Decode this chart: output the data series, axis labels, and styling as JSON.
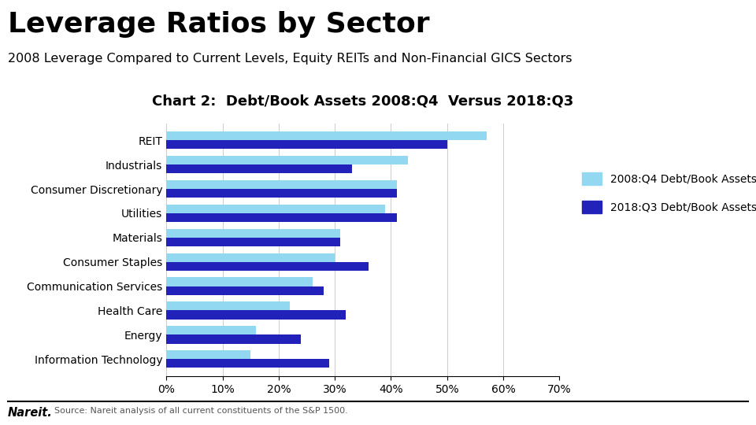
{
  "title_main": "Leverage Ratios by Sector",
  "subtitle": "2008 Leverage Compared to Current Levels, Equity REITs and Non-Financial GICS Sectors",
  "chart_title": "Chart 2:  Debt/Book Assets 2008:Q4  Versus 2018:Q3",
  "categories": [
    "Information Technology",
    "Energy",
    "Health Care",
    "Communication Services",
    "Consumer Staples",
    "Materials",
    "Utilities",
    "Consumer Discretionary",
    "Industrials",
    "REIT"
  ],
  "values_2008q4": [
    15,
    16,
    22,
    26,
    30,
    31,
    39,
    41,
    43,
    57
  ],
  "values_2018q3": [
    29,
    24,
    32,
    28,
    36,
    31,
    41,
    41,
    33,
    50
  ],
  "color_2008q4": "#92D8F0",
  "color_2018q3": "#2222BB",
  "xlim": [
    0,
    70
  ],
  "xticks": [
    0,
    10,
    20,
    30,
    40,
    50,
    60,
    70
  ],
  "xtick_labels": [
    "0%",
    "10%",
    "20%",
    "30%",
    "40%",
    "50%",
    "60%",
    "70%"
  ],
  "legend_label_2008q4": "2008:Q4 Debt/Book Assets",
  "legend_label_2018q3": "2018:Q3 Debt/Book Assets",
  "source_text": "Source: Nareit analysis of all current constituents of the S&P 1500.",
  "nareit_text": "Nareit.",
  "background_color": "#FFFFFF",
  "title_fontsize": 26,
  "subtitle_fontsize": 11.5,
  "chart_title_fontsize": 13,
  "bar_height": 0.36
}
